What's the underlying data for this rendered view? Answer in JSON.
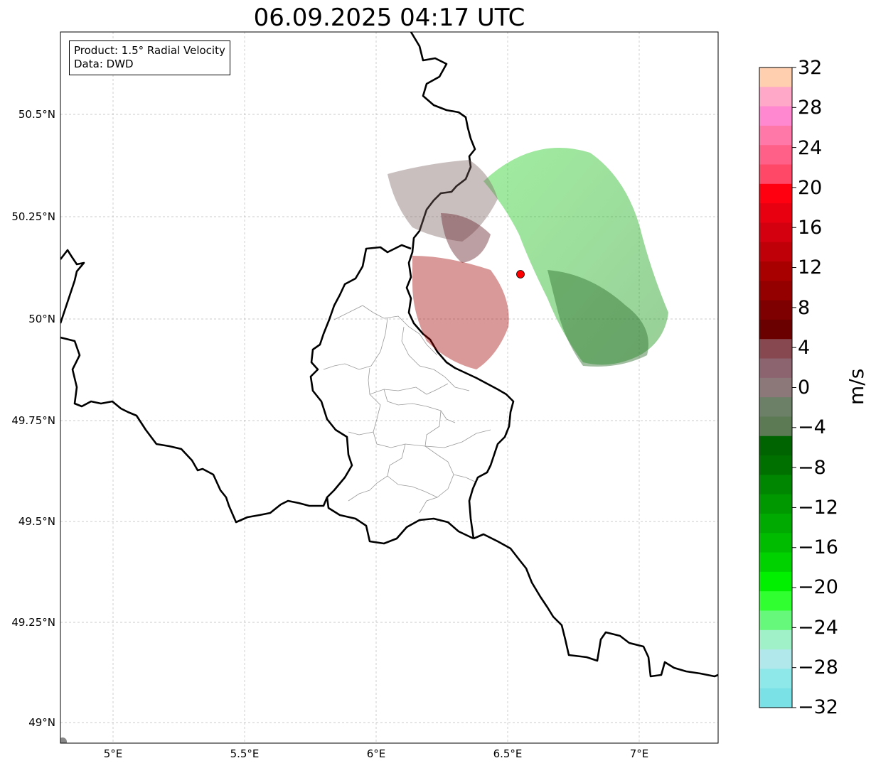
{
  "title": "06.09.2025 04:17 UTC",
  "info_box": {
    "product": "Product: 1.5° Radial Velocity",
    "source": "Data: DWD"
  },
  "map": {
    "lon_range": [
      4.8,
      7.3
    ],
    "lat_range": [
      48.95,
      50.7
    ],
    "lat_ticks": [
      50.5,
      50.25,
      50.0,
      49.75,
      49.5,
      49.25,
      49.0
    ],
    "lat_labels": [
      "50.5°N",
      "50.25°N",
      "50°N",
      "49.75°N",
      "49.5°N",
      "49.25°N",
      "49°N"
    ],
    "lon_ticks": [
      5.0,
      5.5,
      6.0,
      6.5,
      7.0
    ],
    "lon_labels": [
      "5°E",
      "5.5°E",
      "6°E",
      "6.5°E",
      "7°E"
    ],
    "grid": true,
    "radar_site": {
      "lon": 6.548,
      "lat": 50.11,
      "marker_color": "#ff0000"
    }
  },
  "colorbar": {
    "unit": "m/s",
    "vmin": -32,
    "vmax": 32,
    "tick_values": [
      32,
      28,
      24,
      20,
      16,
      12,
      8,
      4,
      0,
      -4,
      -8,
      -12,
      -16,
      -20,
      -24,
      -28,
      -32
    ],
    "tick_labels": [
      "32",
      "28",
      "24",
      "20",
      "16",
      "12",
      "8",
      "4",
      "0",
      "−4",
      "−8",
      "−12",
      "−16",
      "−20",
      "−24",
      "−28",
      "−32"
    ],
    "colors_top_to_bottom": [
      "#ffcfb0",
      "#ffa8c8",
      "#ff88d0",
      "#ff78a8",
      "#ff6088",
      "#ff4868",
      "#ff0010",
      "#e80010",
      "#d40010",
      "#c00008",
      "#a80000",
      "#940000",
      "#7e0000",
      "#6a0000",
      "#884850",
      "#8c6470",
      "#8c7878",
      "#6c8068",
      "#5c7a54",
      "#006400",
      "#007000",
      "#008600",
      "#009800",
      "#00aa00",
      "#00bc00",
      "#00d200",
      "#00f000",
      "#30ff30",
      "#66f87a",
      "#a0f0c8",
      "#b0e8ec",
      "#8ee8ea",
      "#7ae2e6"
    ]
  }
}
